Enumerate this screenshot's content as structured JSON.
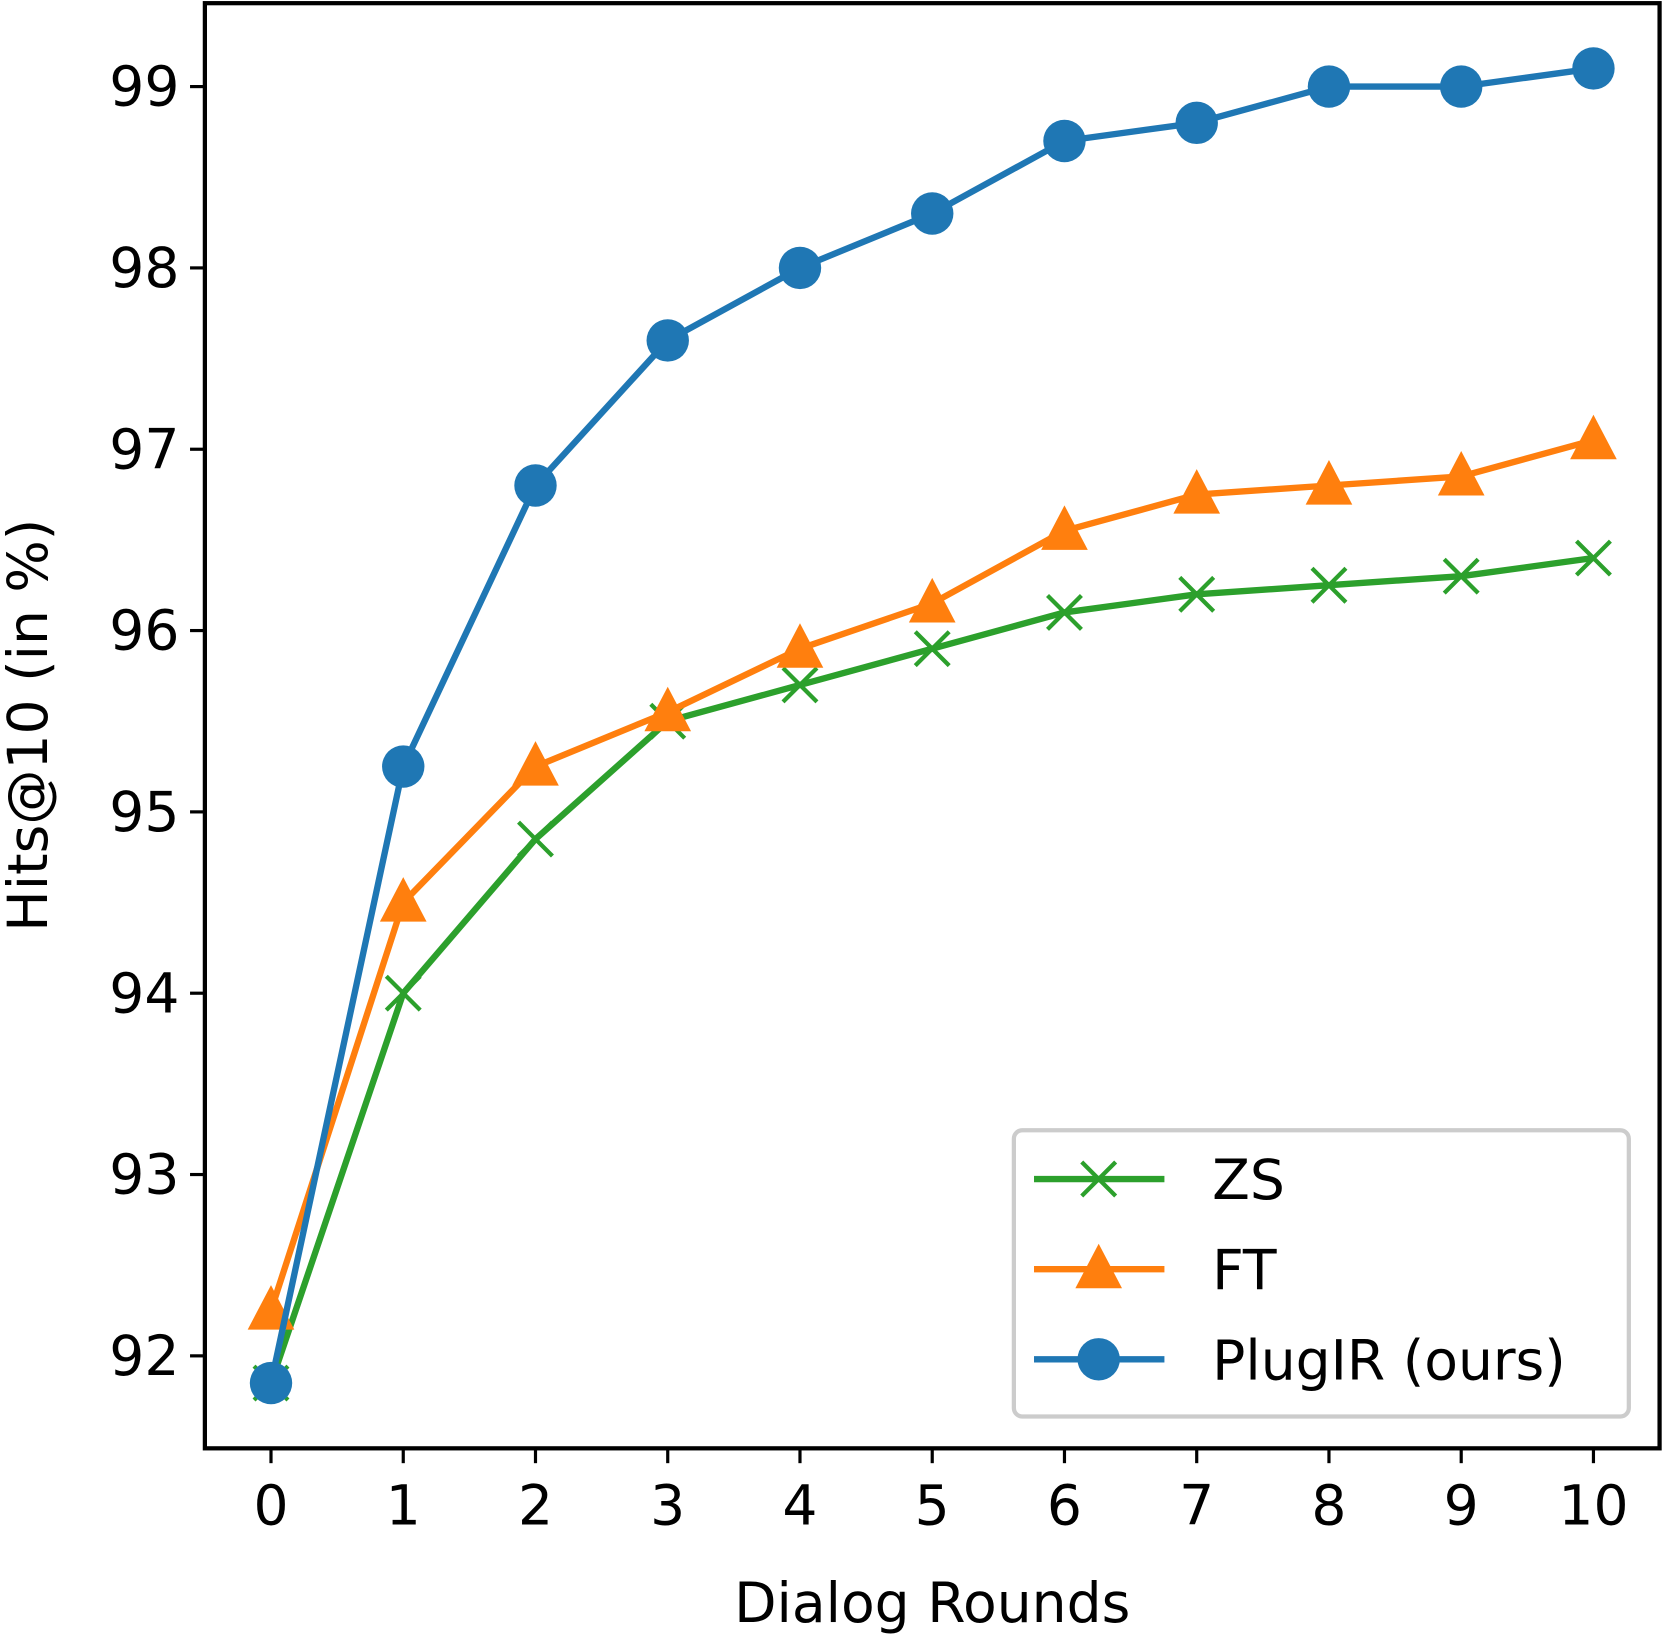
{
  "chart_data": {
    "type": "line",
    "xlabel": "Dialog Rounds",
    "ylabel": "Hits@10 (in %)",
    "x": [
      0,
      1,
      2,
      3,
      4,
      5,
      6,
      7,
      8,
      9,
      10
    ],
    "xlim": [
      -0.5,
      10.5
    ],
    "ylim": [
      91.49,
      99.46
    ],
    "xticks": [
      "0",
      "1",
      "2",
      "3",
      "4",
      "5",
      "6",
      "7",
      "8",
      "9",
      "10"
    ],
    "yticks": [
      "92",
      "93",
      "94",
      "95",
      "96",
      "97",
      "98",
      "99"
    ],
    "grid": false,
    "legend_position": "lower-right",
    "series": [
      {
        "name": "ZS",
        "color": "#2ca02c",
        "marker": "x",
        "values": [
          91.85,
          94.0,
          94.85,
          95.5,
          95.7,
          95.9,
          96.1,
          96.2,
          96.25,
          96.3,
          96.4
        ]
      },
      {
        "name": "FT",
        "color": "#ff7f0e",
        "marker": "triangle",
        "values": [
          92.25,
          94.5,
          95.25,
          95.55,
          95.9,
          96.15,
          96.55,
          96.75,
          96.8,
          96.85,
          97.05
        ]
      },
      {
        "name": "PlugIR (ours)",
        "color": "#1f77b4",
        "marker": "circle",
        "values": [
          91.85,
          95.25,
          96.8,
          97.6,
          98.0,
          98.3,
          98.7,
          98.8,
          99.0,
          99.0,
          99.1
        ]
      }
    ]
  }
}
